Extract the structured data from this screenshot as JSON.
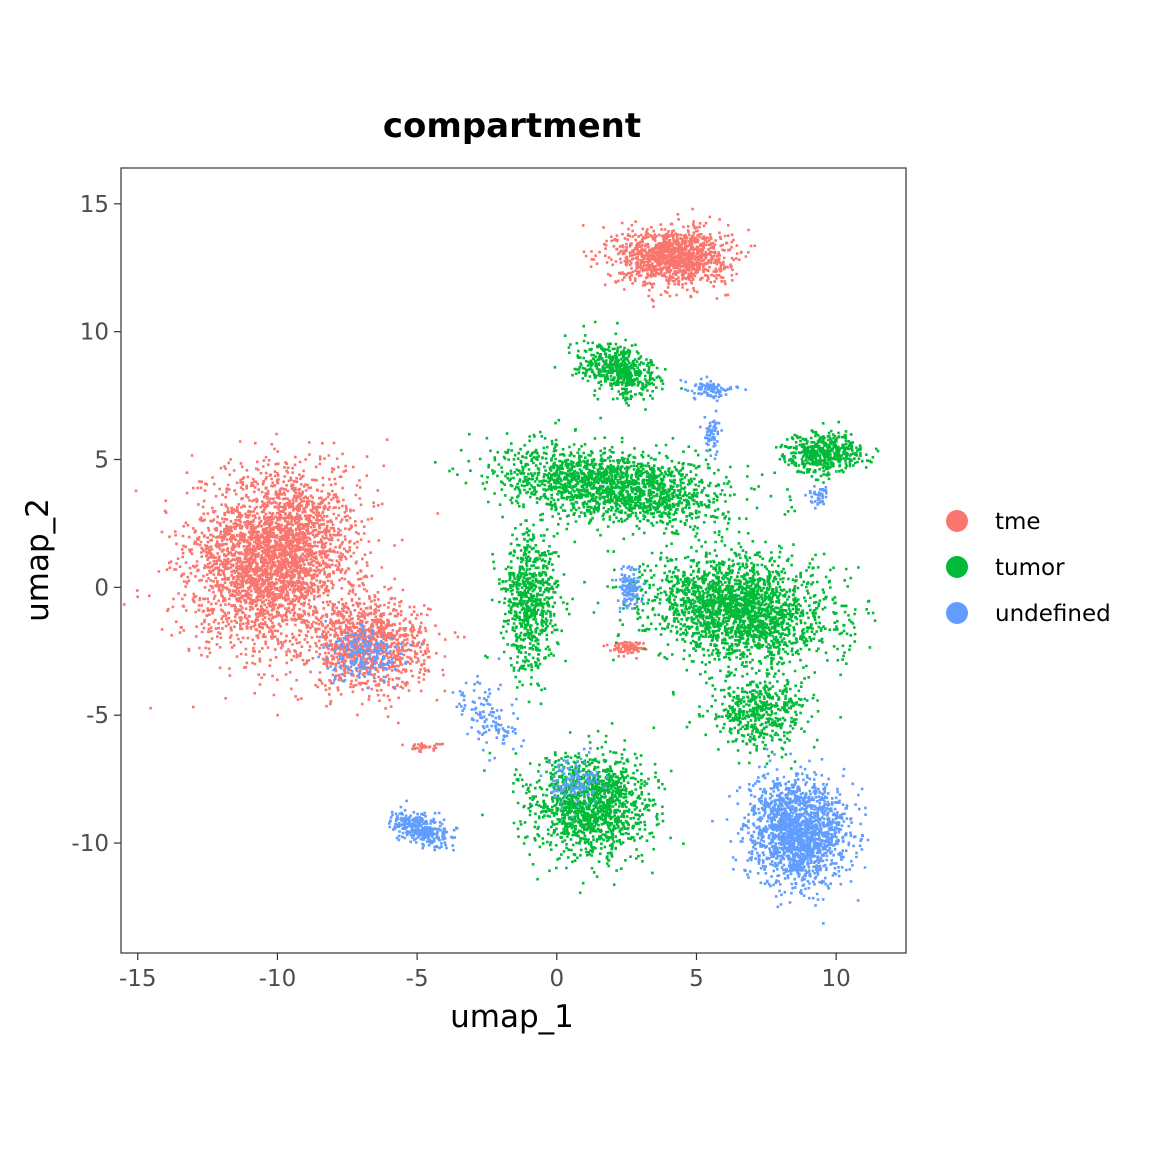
{
  "chart_data": {
    "type": "scatter",
    "title": "compartment",
    "xlabel": "umap_1",
    "ylabel": "umap_2",
    "xlim": [
      -15.6,
      12.5
    ],
    "ylim": [
      -14.3,
      16.4
    ],
    "x_ticks": [
      -15,
      -10,
      -5,
      0,
      5,
      10
    ],
    "x_tick_labels": [
      "-15",
      "-10",
      "-5",
      "0",
      "5",
      "10"
    ],
    "y_ticks": [
      -10,
      -5,
      0,
      5,
      10,
      15
    ],
    "y_tick_labels": [
      "-10",
      "-5",
      "0",
      "5",
      "10",
      "15"
    ],
    "grid": false,
    "legend_position": "right",
    "series": [
      {
        "name": "tme",
        "color": "#F8766D",
        "clusters": [
          {
            "cx": -10.2,
            "cy": 1.2,
            "sx": 2.2,
            "sy": 2.7,
            "rot": -20,
            "n": 3200
          },
          {
            "cx": -6.8,
            "cy": -2.2,
            "sx": 1.7,
            "sy": 1.4,
            "rot": 0,
            "n": 1100
          },
          {
            "cx": 4.1,
            "cy": 13.0,
            "sx": 1.6,
            "sy": 0.9,
            "rot": 0,
            "n": 1200
          },
          {
            "cx": 2.5,
            "cy": -2.3,
            "sx": 0.5,
            "sy": 0.2,
            "rot": 0,
            "n": 80
          },
          {
            "cx": -4.8,
            "cy": -6.2,
            "sx": 0.5,
            "sy": 0.12,
            "rot": 0,
            "n": 40
          }
        ]
      },
      {
        "name": "tumor",
        "color": "#00BA38",
        "clusters": [
          {
            "cx": 2.0,
            "cy": 4.0,
            "sx": 3.2,
            "sy": 1.1,
            "rot": -8,
            "n": 1800
          },
          {
            "cx": -1.0,
            "cy": -0.5,
            "sx": 0.8,
            "sy": 2.2,
            "rot": 0,
            "n": 700
          },
          {
            "cx": 2.2,
            "cy": 8.5,
            "sx": 1.2,
            "sy": 0.7,
            "rot": -25,
            "n": 550
          },
          {
            "cx": 9.5,
            "cy": 5.3,
            "sx": 1.1,
            "sy": 0.6,
            "rot": 0,
            "n": 500
          },
          {
            "cx": 6.5,
            "cy": -0.8,
            "sx": 2.6,
            "sy": 1.6,
            "rot": -10,
            "n": 2200
          },
          {
            "cx": 1.2,
            "cy": -8.5,
            "sx": 1.7,
            "sy": 1.6,
            "rot": 0,
            "n": 1400
          },
          {
            "cx": 7.2,
            "cy": -4.8,
            "sx": 1.4,
            "sy": 1.2,
            "rot": 0,
            "n": 500
          }
        ]
      },
      {
        "name": "undefined",
        "color": "#619CFF",
        "clusters": [
          {
            "cx": 8.6,
            "cy": -9.5,
            "sx": 1.4,
            "sy": 1.6,
            "rot": 0,
            "n": 1700
          },
          {
            "cx": -4.9,
            "cy": -9.4,
            "sx": 0.9,
            "sy": 0.45,
            "rot": -25,
            "n": 320
          },
          {
            "cx": 2.6,
            "cy": 0.0,
            "sx": 0.35,
            "sy": 0.6,
            "rot": 0,
            "n": 120
          },
          {
            "cx": 5.5,
            "cy": 7.8,
            "sx": 0.7,
            "sy": 0.3,
            "rot": 0,
            "n": 90
          },
          {
            "cx": 5.5,
            "cy": 6.0,
            "sx": 0.25,
            "sy": 0.5,
            "rot": 0,
            "n": 60
          },
          {
            "cx": -2.5,
            "cy": -5.0,
            "sx": 0.7,
            "sy": 1.2,
            "rot": 30,
            "n": 120
          },
          {
            "cx": -7.0,
            "cy": -2.6,
            "sx": 1.0,
            "sy": 0.8,
            "rot": 0,
            "n": 200
          },
          {
            "cx": 9.3,
            "cy": 3.6,
            "sx": 0.3,
            "sy": 0.4,
            "rot": 0,
            "n": 40
          },
          {
            "cx": 0.5,
            "cy": -7.5,
            "sx": 0.8,
            "sy": 0.8,
            "rot": 0,
            "n": 120
          }
        ]
      }
    ]
  }
}
